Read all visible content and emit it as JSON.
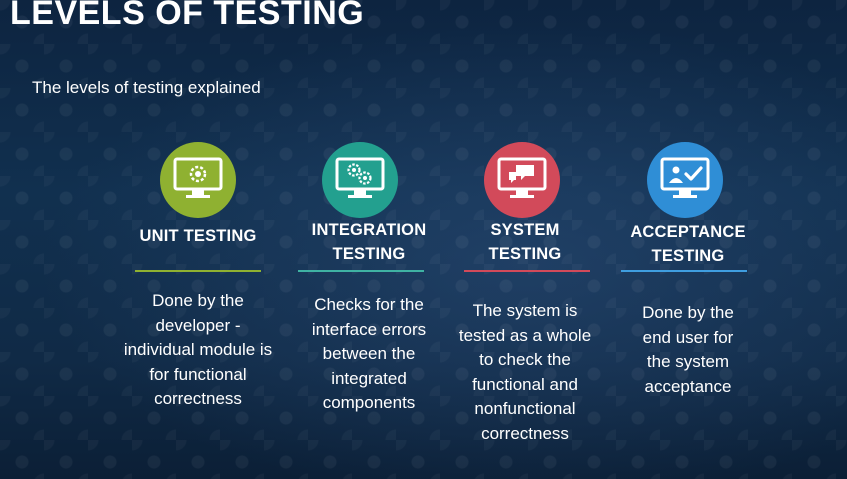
{
  "title": "LEVELS OF TESTING",
  "subtitle": "The levels of testing explained",
  "levels": [
    {
      "heading_line1": "UNIT TESTING",
      "heading_line2": "",
      "description": [
        "Done by the",
        "developer -",
        "individual module is",
        "for functional",
        "correctness"
      ],
      "color": "#8fb131",
      "rule_color": "#8fb131",
      "icon": "monitor-gear-icon"
    },
    {
      "heading_line1": "INTEGRATION",
      "heading_line2": "TESTING",
      "description": [
        "Checks for the",
        "interface errors",
        "between the",
        "integrated",
        "components"
      ],
      "color": "#23a08f",
      "rule_color": "#3fb2a3",
      "icon": "monitor-gears-icon"
    },
    {
      "heading_line1": "SYSTEM",
      "heading_line2": "TESTING",
      "description": [
        "The system is",
        "tested as a whole",
        "to check the",
        "functional and",
        "nonfunctional",
        "correctness"
      ],
      "color": "#d24a5a",
      "rule_color": "#d24a5a",
      "icon": "monitor-chat-icon"
    },
    {
      "heading_line1": "ACCEPTANCE",
      "heading_line2": "TESTING",
      "description": [
        "Done by the",
        "end user for",
        "the system",
        "acceptance"
      ],
      "color": "#2f8ed6",
      "rule_color": "#3f9ee0",
      "icon": "monitor-user-check-icon"
    }
  ]
}
